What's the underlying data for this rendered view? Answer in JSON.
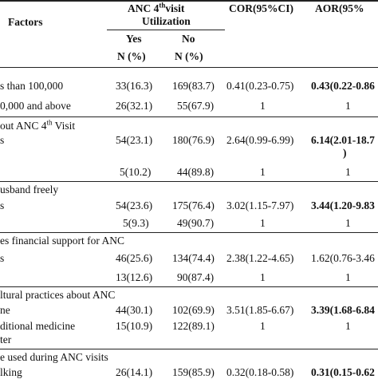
{
  "header": {
    "factors": "Factors",
    "anc_line1_pre": "ANC 4",
    "anc_line1_sup": "th",
    "anc_line1_post": "visit",
    "anc_line2": "Utilization",
    "yes": "Yes",
    "no": "No",
    "n_pct_yes": "N (%)",
    "n_pct_no": "N (%)",
    "cor": "COR(95%CI)",
    "aor": "AOR(95%"
  },
  "rows": [
    {
      "label": "s than 100,000",
      "yes": "33(16.3)",
      "no": "169(83.7)",
      "cor": "0.41(0.23-0.75)",
      "aor": "0.43(0.22-0.86",
      "aor_bold": true
    },
    {
      "label": "0,000 and above",
      "yes": "26(32.1)",
      "no": "55(67.9)",
      "cor": "1",
      "aor": "1"
    },
    {
      "section": "out ANC 4",
      "section_sup": "th",
      "section_post": " Visit"
    },
    {
      "label": "s",
      "yes": "54(23.1)",
      "no": "180(76.9)",
      "cor": "2.64(0.99-6.99)",
      "aor": "6.14(2.01-18.7",
      "aor_bold": true,
      "aor_cont": ")"
    },
    {
      "label": "",
      "yes": "5(10.2)",
      "no": "44(89.8)",
      "cor": "1",
      "aor": "1"
    },
    {
      "section": "usband freely"
    },
    {
      "label": "s",
      "yes": "54(23.6)",
      "no": "175(76.4)",
      "cor": "3.02(1.15-7.97)",
      "aor": "3.44(1.20-9.83",
      "aor_bold": true
    },
    {
      "label": "",
      "yes": "5(9.3)",
      "no": "49(90.7)",
      "cor": "1",
      "aor": "1"
    },
    {
      "section": "es financial support for ANC"
    },
    {
      "label": "s",
      "yes": "46(25.6)",
      "no": "134(74.4)",
      "cor": "2.38(1.22-4.65)",
      "aor": "1.62(0.76-3.46"
    },
    {
      "label": "",
      "yes": "13(12.6)",
      "no": "90(87.4)",
      "cor": "1",
      "aor": "1"
    },
    {
      "section": "ltural practices about ANC"
    },
    {
      "label": "ne",
      "yes": "44(30.1)",
      "no": "102(69.9)",
      "cor": "3.51(1.85-6.67)",
      "aor": "3.39(1.68-6.84",
      "aor_bold": true
    },
    {
      "label": "ditional medicine",
      "label2": "ter",
      "yes": "15(10.9)",
      "no": "122(89.1)",
      "cor": "1",
      "aor": "1"
    },
    {
      "section": "e used during ANC visits"
    },
    {
      "label": "lking",
      "yes": "26(14.1)",
      "no": "159(85.9)",
      "cor": "0.32(0.18-0.58)",
      "aor": "0.31(0.15-0.62",
      "aor_bold": true
    }
  ]
}
